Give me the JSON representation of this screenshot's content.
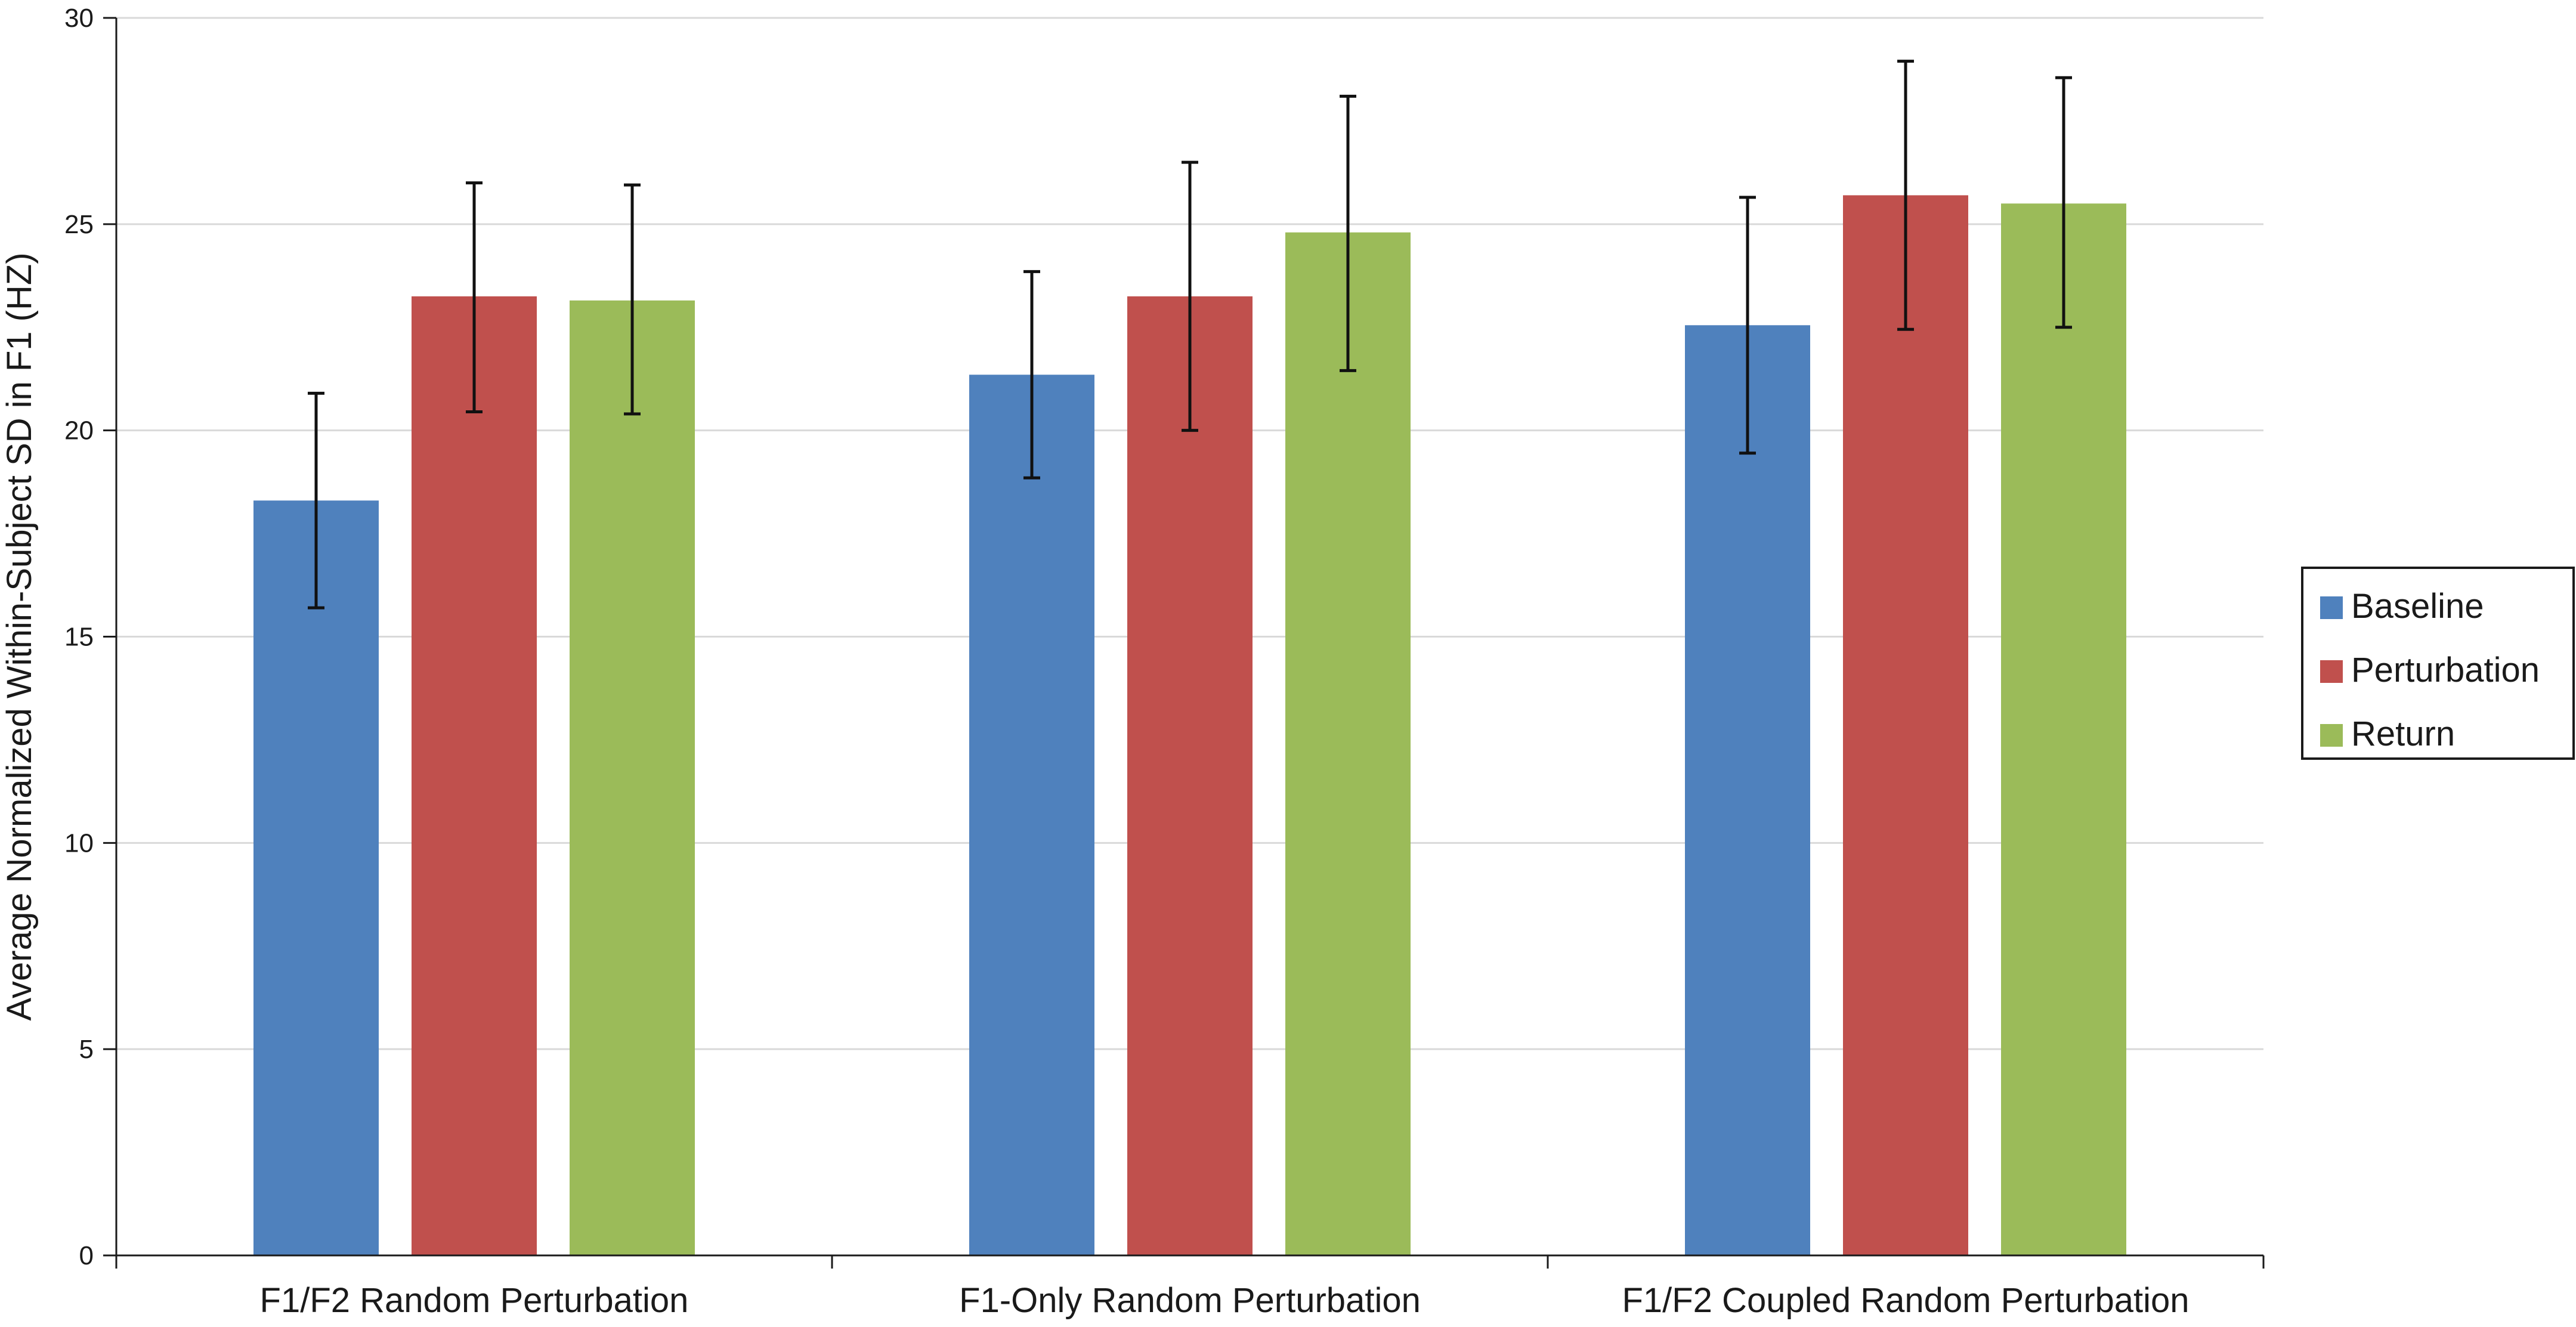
{
  "chart_data": {
    "type": "bar",
    "title": "",
    "xlabel": "",
    "ylabel": "Average Normalized Within-Subject SD in F1 (HZ)",
    "ylim": [
      0,
      30
    ],
    "yticks": [
      0,
      5,
      10,
      15,
      20,
      25,
      30
    ],
    "grid": true,
    "legend_position": "right",
    "categories": [
      "F1/F2 Random Perturbation",
      "F1-Only Random Perturbation",
      "F1/F2 Coupled Random Perturbation"
    ],
    "series": [
      {
        "name": "Baseline",
        "color": "#4F81BD",
        "values": [
          18.3,
          21.35,
          22.55
        ],
        "error_low": [
          15.7,
          18.85,
          19.45
        ],
        "error_high": [
          20.9,
          23.85,
          25.65
        ]
      },
      {
        "name": "Perturbation",
        "color": "#C0504D",
        "values": [
          23.25,
          23.25,
          25.7
        ],
        "error_low": [
          20.45,
          20.0,
          22.45
        ],
        "error_high": [
          26.0,
          26.5,
          28.95
        ]
      },
      {
        "name": "Return",
        "color": "#9BBB59",
        "values": [
          23.15,
          24.8,
          25.5
        ],
        "error_low": [
          20.4,
          21.45,
          22.5
        ],
        "error_high": [
          25.95,
          28.1,
          28.55
        ]
      }
    ]
  }
}
